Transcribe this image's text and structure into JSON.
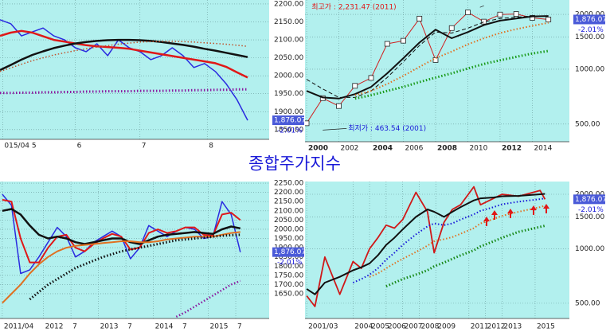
{
  "title": "종합주가지수",
  "chart_data": [
    {
      "type": "line",
      "x": [
        0,
        4,
        8,
        12,
        16,
        20,
        24,
        28,
        32,
        36,
        40,
        44,
        48,
        52,
        56,
        60,
        64,
        68,
        72,
        76,
        80,
        84,
        88,
        92
      ],
      "xlim": [
        0,
        100
      ],
      "xticks": [
        {
          "value": 1,
          "label": "015/04 5"
        },
        {
          "value": 28,
          "label": "6"
        },
        {
          "value": 52,
          "label": "7"
        },
        {
          "value": 77,
          "label": "8"
        }
      ],
      "ylim": [
        1823,
        2211
      ],
      "yticks": [
        {
          "value": 2200,
          "label": "2200.00"
        },
        {
          "value": 2150,
          "label": "2150.00"
        },
        {
          "value": 2100,
          "label": "2100.00"
        },
        {
          "value": 2050,
          "label": "2050.00"
        },
        {
          "value": 2000,
          "label": "2000.00"
        },
        {
          "value": 1950,
          "label": "1950.00"
        },
        {
          "value": 1900,
          "label": "1900.00"
        },
        {
          "value": 1850,
          "label": "1850.00"
        }
      ],
      "grid": true,
      "series": [
        {
          "color": "#2a2ae0",
          "width": 1.5,
          "values": [
            2156,
            2145,
            2111,
            2122,
            2133,
            2111,
            2100,
            2078,
            2067,
            2089,
            2056,
            2100,
            2078,
            2067,
            2045,
            2056,
            2078,
            2056,
            2023,
            2034,
            2012,
            1978,
            1934,
            1876
          ]
        },
        {
          "color": "#e01818",
          "width": 2.5,
          "values": [
            2111,
            2120,
            2125,
            2120,
            2110,
            2100,
            2095,
            2090,
            2085,
            2082,
            2080,
            2078,
            2075,
            2070,
            2065,
            2060,
            2055,
            2050,
            2045,
            2040,
            2035,
            2025,
            2010,
            1995
          ]
        },
        {
          "color": "#111111",
          "width": 2.5,
          "values": [
            2016,
            2030,
            2045,
            2058,
            2068,
            2077,
            2084,
            2090,
            2094,
            2097,
            2099,
            2100,
            2100,
            2099,
            2097,
            2094,
            2090,
            2086,
            2081,
            2075,
            2070,
            2064,
            2058,
            2052
          ]
        },
        {
          "color": "#c0502a",
          "width": 1.5,
          "dash": "dotted",
          "values": [
            2012,
            2022,
            2032,
            2042,
            2050,
            2058,
            2064,
            2070,
            2075,
            2080,
            2084,
            2088,
            2091,
            2094,
            2095,
            2096,
            2096,
            2095,
            2094,
            2092,
            2090,
            2088,
            2085,
            2082
          ]
        },
        {
          "color": "#8a1aa0",
          "width": 3,
          "dash": "dotted",
          "values": [
            1952,
            1952,
            1953,
            1953,
            1954,
            1954,
            1955,
            1955,
            1956,
            1956,
            1957,
            1957,
            1957,
            1958,
            1958,
            1958,
            1959,
            1959,
            1960,
            1960,
            1961,
            1961,
            1962,
            1962
          ]
        }
      ],
      "price_tag": {
        "value": 1876.07,
        "label": "1,876.07"
      },
      "change": {
        "value": -2.01,
        "label": "-2.01%"
      }
    },
    {
      "type": "line",
      "x": [
        2000,
        2001,
        2002,
        2003,
        2004,
        2005,
        2006,
        2007,
        2008,
        2009,
        2010,
        2011,
        2012,
        2013,
        2014,
        2015
      ],
      "xlim": [
        1999.9,
        2016.3
      ],
      "xticks": [
        2000,
        2002,
        2004,
        2006,
        2008,
        2010,
        2012,
        2014
      ],
      "ylim": [
        400,
        2400
      ],
      "log_y": true,
      "yticks": [
        {
          "value": 2000,
          "label": "2000.00"
        },
        {
          "value": 1500,
          "label": "1500.00"
        },
        {
          "value": 1000,
          "label": "1000.00"
        },
        {
          "value": 500,
          "label": "500.00"
        }
      ],
      "grid": true,
      "series": [
        {
          "color": "#d02020",
          "width": 1,
          "marker": "square",
          "values": [
            505,
            694,
            628,
            811,
            896,
            1379,
            1434,
            1897,
            1124,
            1683,
            2051,
            1826,
            1997,
            2011,
            1916,
            1876
          ]
        },
        {
          "color": "#111111",
          "width": 2,
          "values": [
            760,
            700,
            690,
            730,
            800,
            950,
            1150,
            1400,
            1650,
            1480,
            1600,
            1750,
            1850,
            1900,
            1950,
            1960
          ]
        },
        {
          "color": "#111111",
          "width": 1,
          "dash": "dashed",
          "values": [
            880,
            780,
            700,
            700,
            760,
            900,
            1100,
            1350,
            1600,
            1580,
            1680,
            1820,
            1900,
            1930,
            1960,
            1950
          ]
        },
        {
          "color": "#e07020",
          "width": 2,
          "dash": "dotted",
          "values": [
            null,
            null,
            null,
            720,
            760,
            830,
            920,
            1030,
            1150,
            1250,
            1370,
            1480,
            1580,
            1660,
            1730,
            1800
          ]
        },
        {
          "color": "#1a9a1a",
          "width": 3,
          "dash": "dotted",
          "values": [
            null,
            null,
            null,
            690,
            720,
            760,
            800,
            850,
            900,
            950,
            1010,
            1070,
            1120,
            1170,
            1220,
            1260
          ]
        }
      ],
      "annotations": [
        {
          "text": "최고가 : 2,231.47 (2011)",
          "x": 2011,
          "y": 2231.47,
          "color": "#e01818",
          "side": "left"
        },
        {
          "text": "최저가 : 463.54 (2001)",
          "x": 2001,
          "y": 463.54,
          "color": "#1a1ad8",
          "side": "right"
        }
      ],
      "price_tag": {
        "value": 1876.07,
        "label": "1,876.07"
      },
      "change": {
        "value": -2.01,
        "label": "-2.01%"
      }
    },
    {
      "type": "line",
      "x": [
        0,
        2,
        4,
        6,
        8,
        10,
        12,
        14,
        16,
        18,
        20,
        22,
        24,
        26,
        28,
        30,
        32,
        34,
        36,
        38,
        40,
        42,
        44,
        46,
        48,
        50,
        52
      ],
      "xlim": [
        -0.5,
        58.3
      ],
      "xticks": [
        {
          "value": 0,
          "label": "2011/04"
        },
        {
          "value": 9,
          "label": "2012"
        },
        {
          "value": 15,
          "label": "7"
        },
        {
          "value": 21,
          "label": "2013"
        },
        {
          "value": 27,
          "label": "7"
        },
        {
          "value": 33,
          "label": "2014"
        },
        {
          "value": 39,
          "label": "7"
        },
        {
          "value": 45,
          "label": "2015"
        },
        {
          "value": 51,
          "label": "7"
        }
      ],
      "ylim": [
        1516,
        2259
      ],
      "yticks": [
        {
          "value": 2250,
          "label": "2250.00"
        },
        {
          "value": 2200,
          "label": "2200.00"
        },
        {
          "value": 2150,
          "label": "2150.00"
        },
        {
          "value": 2100,
          "label": "2100.00"
        },
        {
          "value": 2050,
          "label": "2050.00"
        },
        {
          "value": 2000,
          "label": "2000.00"
        },
        {
          "value": 1950,
          "label": "1950.00"
        },
        {
          "value": 1900,
          "label": "1900.00"
        },
        {
          "value": 1850,
          "label": "1850.00"
        },
        {
          "value": 1800,
          "label": "1800.00"
        },
        {
          "value": 1750,
          "label": "1750.00"
        },
        {
          "value": 1700,
          "label": "1700.00"
        },
        {
          "value": 1650,
          "label": "1650.00"
        }
      ],
      "grid": true,
      "series": [
        {
          "color": "#2a2ae0",
          "width": 1.5,
          "values": [
            2190,
            2130,
            1760,
            1780,
            1850,
            1930,
            2010,
            1960,
            1850,
            1880,
            1930,
            1960,
            1990,
            1960,
            1840,
            1900,
            2020,
            1990,
            1960,
            1990,
            2010,
            2000,
            1950,
            1960,
            2150,
            2080,
            1876
          ]
        },
        {
          "color": "#e01818",
          "width": 2,
          "values": [
            2160,
            2150,
            1950,
            1820,
            1820,
            1900,
            1960,
            1970,
            1900,
            1880,
            1920,
            1950,
            1975,
            1960,
            1890,
            1900,
            1980,
            2000,
            1980,
            1990,
            2010,
            2010,
            1970,
            1965,
            2080,
            2090,
            2050
          ]
        },
        {
          "color": "#111111",
          "width": 2.5,
          "values": [
            2100,
            2110,
            2080,
            2020,
            1970,
            1950,
            1960,
            1950,
            1930,
            1920,
            1930,
            1940,
            1950,
            1950,
            1930,
            1920,
            1940,
            1960,
            1970,
            1975,
            1980,
            1985,
            1980,
            1975,
            2000,
            2015,
            2005
          ]
        },
        {
          "color": "#e07020",
          "width": 2,
          "values": [
            1600,
            1650,
            1700,
            1760,
            1810,
            1850,
            1880,
            1900,
            1910,
            1915,
            1920,
            1925,
            1930,
            1935,
            1935,
            1930,
            1930,
            1935,
            1945,
            1950,
            1955,
            1960,
            1960,
            1960,
            1970,
            1980,
            1985
          ]
        },
        {
          "color": "#111111",
          "width": 3,
          "dash": "dotted",
          "values": [
            null,
            null,
            null,
            1620,
            1660,
            1700,
            1730,
            1760,
            1790,
            1810,
            1830,
            1850,
            1865,
            1880,
            1890,
            1900,
            1910,
            1920,
            1930,
            1940,
            1945,
            1950,
            1955,
            1960,
            1965,
            1968,
            1970
          ]
        },
        {
          "color": "#8a1aa0",
          "width": 2.5,
          "dash": "dotted",
          "values": [
            null,
            null,
            null,
            null,
            null,
            null,
            null,
            null,
            null,
            null,
            null,
            null,
            null,
            null,
            null,
            null,
            null,
            null,
            null,
            1525,
            1550,
            1580,
            1610,
            1640,
            1670,
            1700,
            1720
          ]
        }
      ],
      "price_tag": {
        "value": 1876.07,
        "label": "1,876.07"
      },
      "change": {
        "value": -2.01,
        "label": "-2.01%"
      }
    },
    {
      "type": "line",
      "x": [
        2001.2,
        2001.7,
        2002.3,
        2003.2,
        2004.0,
        2004.5,
        2005.0,
        2005.5,
        2006.0,
        2006.5,
        2007.0,
        2007.8,
        2008.5,
        2008.9,
        2009.5,
        2010.0,
        2010.5,
        2011.3,
        2011.7,
        2012.5,
        2013.0,
        2014.0,
        2015.3,
        2015.6
      ],
      "xlim": [
        2001.1,
        2017.07
      ],
      "xticks": [
        {
          "value": 2001.2,
          "label": "2001/03"
        },
        2004,
        2005,
        2006,
        2007,
        2008,
        2009,
        2011,
        2012,
        2013,
        2015
      ],
      "ylim": [
        412,
        2352
      ],
      "log_y": true,
      "yticks": [
        {
          "value": 2000,
          "label": "2000.00"
        },
        {
          "value": 1500,
          "label": "1500.00"
        },
        {
          "value": 1000,
          "label": "1000.00"
        },
        {
          "value": 500,
          "label": "500.00"
        }
      ],
      "grid": true,
      "series": [
        {
          "color": "#d01818",
          "width": 1.8,
          "values": [
            550,
            480,
            900,
            560,
            850,
            780,
            1000,
            1150,
            1350,
            1300,
            1450,
            2050,
            1600,
            950,
            1400,
            1650,
            1750,
            2200,
            1750,
            1900,
            2000,
            1950,
            2100,
            1876
          ]
        },
        {
          "color": "#111111",
          "width": 2,
          "values": [
            600,
            560,
            650,
            700,
            760,
            790,
            830,
            920,
            1050,
            1150,
            1280,
            1500,
            1650,
            1600,
            1500,
            1600,
            1700,
            1850,
            1900,
            1920,
            1950,
            1960,
            2000,
            2010
          ]
        },
        {
          "color": "#1a1ad8",
          "width": 2,
          "dash": "dotted",
          "values": [
            null,
            null,
            null,
            null,
            650,
            680,
            720,
            780,
            870,
            950,
            1050,
            1200,
            1330,
            1380,
            1350,
            1380,
            1450,
            1550,
            1620,
            1700,
            1760,
            1820,
            1880,
            1900
          ]
        },
        {
          "color": "#e07020",
          "width": 2,
          "dash": "dotted",
          "values": [
            null,
            null,
            null,
            null,
            null,
            null,
            700,
            730,
            780,
            830,
            880,
            960,
            1040,
            1100,
            1130,
            1160,
            1210,
            1300,
            1380,
            1460,
            1520,
            1600,
            1700,
            1730
          ]
        },
        {
          "color": "#1a8a1a",
          "width": 3,
          "dash": "dotted",
          "values": [
            null,
            null,
            null,
            null,
            null,
            null,
            null,
            null,
            620,
            650,
            680,
            720,
            760,
            800,
            840,
            880,
            920,
            980,
            1030,
            1100,
            1150,
            1240,
            1320,
            1340
          ]
        }
      ],
      "price_tag": {
        "value": 1876.07,
        "label": "1,876.07"
      },
      "change": {
        "value": -2.01,
        "label": "-2.01%"
      }
    }
  ]
}
